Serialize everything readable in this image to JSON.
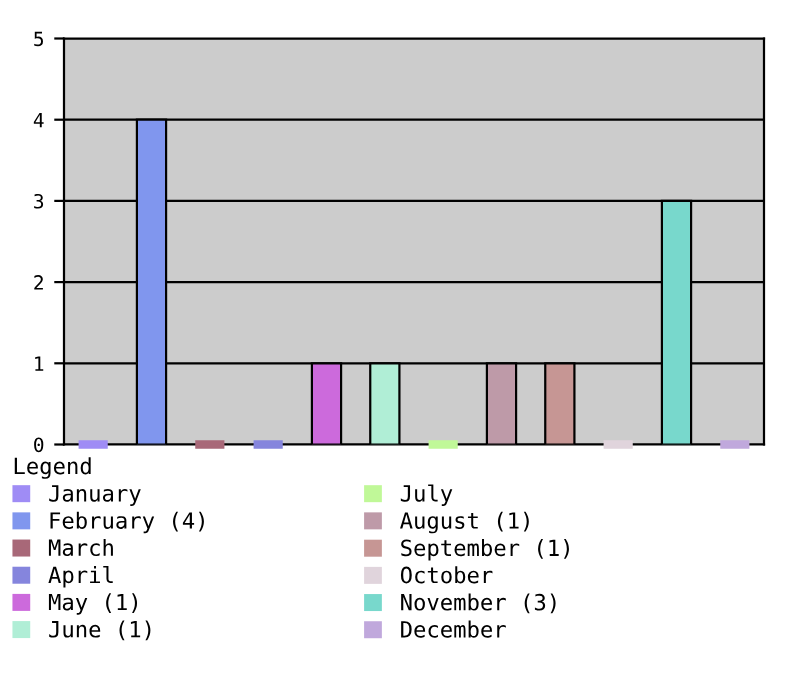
{
  "chart_data": {
    "type": "bar",
    "categories": [
      null,
      null,
      null,
      null,
      null,
      null,
      null,
      null,
      null,
      null,
      null,
      null
    ],
    "legend_title": "Legend",
    "legend": "bottom",
    "grid": "y",
    "ylim": [
      0,
      5
    ],
    "yticks": [
      0,
      1,
      2,
      3,
      4,
      5
    ],
    "series": [
      {
        "name": "January",
        "color": "#9f8cf5",
        "values": [
          0,
          null,
          null,
          null,
          null,
          null,
          null,
          null,
          null,
          null,
          null,
          null
        ]
      },
      {
        "name": "February (4)",
        "color": "#8096ee",
        "values": [
          null,
          4,
          null,
          null,
          null,
          null,
          null,
          null,
          null,
          null,
          null,
          null
        ]
      },
      {
        "name": "March",
        "color": "#a86878",
        "values": [
          null,
          null,
          0,
          null,
          null,
          null,
          null,
          null,
          null,
          null,
          null,
          null
        ]
      },
      {
        "name": "April",
        "color": "#8585dd",
        "values": [
          null,
          null,
          null,
          0,
          null,
          null,
          null,
          null,
          null,
          null,
          null,
          null
        ]
      },
      {
        "name": "May (1)",
        "color": "#cc6adc",
        "values": [
          null,
          null,
          null,
          null,
          1,
          null,
          null,
          null,
          null,
          null,
          null,
          null
        ]
      },
      {
        "name": "June (1)",
        "color": "#b0eed6",
        "values": [
          null,
          null,
          null,
          null,
          null,
          1,
          null,
          null,
          null,
          null,
          null,
          null
        ]
      },
      {
        "name": "July",
        "color": "#c0f898",
        "values": [
          null,
          null,
          null,
          null,
          null,
          null,
          0,
          null,
          null,
          null,
          null,
          null
        ]
      },
      {
        "name": "August (1)",
        "color": "#be9aa8",
        "values": [
          null,
          null,
          null,
          null,
          null,
          null,
          null,
          1,
          null,
          null,
          null,
          null
        ]
      },
      {
        "name": "September (1)",
        "color": "#c69694",
        "values": [
          null,
          null,
          null,
          null,
          null,
          null,
          null,
          null,
          1,
          null,
          null,
          null
        ]
      },
      {
        "name": "October",
        "color": "#e0d4dc",
        "values": [
          null,
          null,
          null,
          null,
          null,
          null,
          null,
          null,
          null,
          0,
          null,
          null
        ]
      },
      {
        "name": "November (3)",
        "color": "#78d8cc",
        "values": [
          null,
          null,
          null,
          null,
          null,
          null,
          null,
          null,
          null,
          null,
          3,
          null
        ]
      },
      {
        "name": "December",
        "color": "#c0a8dc",
        "values": [
          null,
          null,
          null,
          null,
          null,
          null,
          null,
          null,
          null,
          null,
          null,
          0
        ]
      }
    ]
  }
}
